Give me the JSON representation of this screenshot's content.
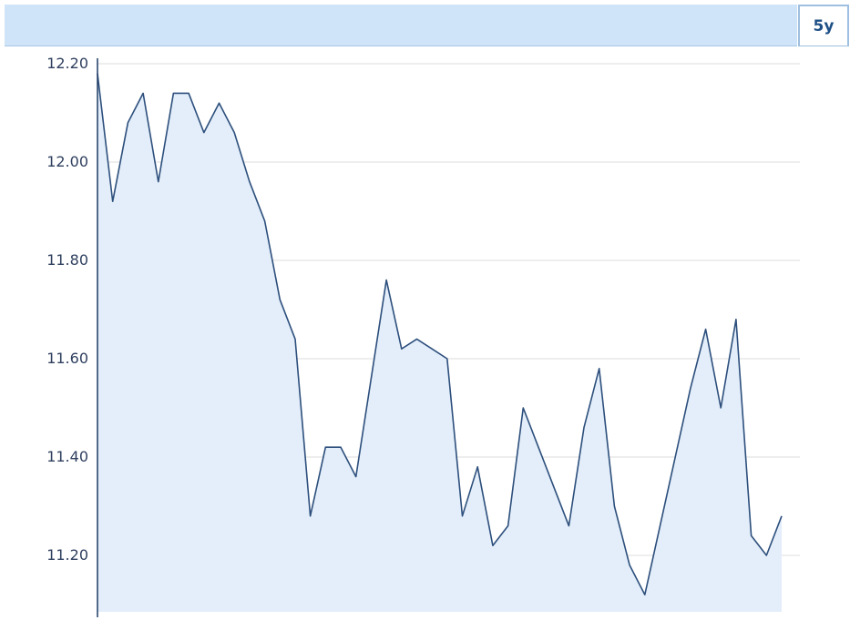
{
  "range_tab": {
    "label": "5y"
  },
  "colors": {
    "header": "#cfe4f8",
    "line": "#2d4f7c",
    "area": "#e3eefa",
    "grid": "#dcdcdc",
    "axis": "#1f3b66",
    "tab_text": "#1d4f86"
  },
  "chart_data": {
    "type": "area",
    "ylim": [
      11.08,
      12.2
    ],
    "y_ticks": [
      "12.20",
      "12.00",
      "11.80",
      "11.60",
      "11.40",
      "11.20"
    ],
    "grid": true,
    "legend": "none",
    "series": [
      {
        "values": [
          12.18,
          11.92,
          12.08,
          12.14,
          11.96,
          12.14,
          12.14,
          12.06,
          12.12,
          12.06,
          11.96,
          11.88,
          11.72,
          11.64,
          11.28,
          11.42,
          11.42,
          11.36,
          11.56,
          11.76,
          11.62,
          11.64,
          11.62,
          11.6,
          11.28,
          11.38,
          11.22,
          11.26,
          11.5,
          11.42,
          11.34,
          11.26,
          11.46,
          11.58,
          11.3,
          11.18,
          11.12,
          11.26,
          11.4,
          11.54,
          11.66,
          11.5,
          11.68,
          11.24,
          11.2,
          11.28
        ]
      }
    ]
  }
}
